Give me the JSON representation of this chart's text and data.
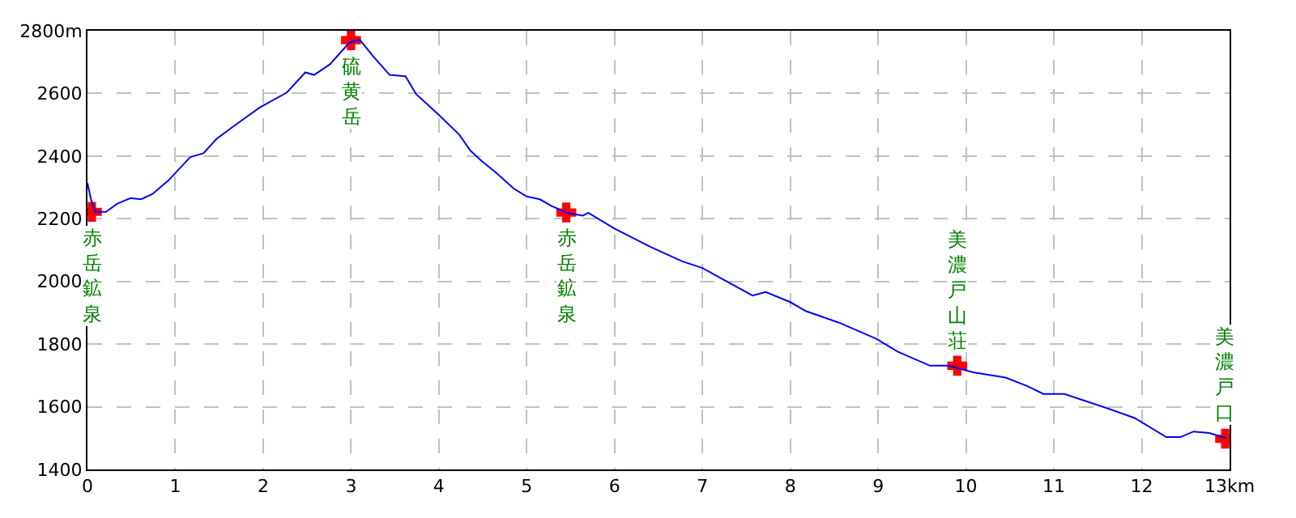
{
  "chart_data": {
    "type": "line",
    "series": [
      {
        "color": "#0000ff",
        "x": [
          0,
          0.04,
          0.09,
          0.21,
          0.34,
          0.49,
          0.61,
          0.74,
          0.92,
          1.17,
          1.32,
          1.47,
          1.72,
          1.96,
          2.27,
          2.48,
          2.58,
          2.76,
          2.98,
          3.1,
          3.25,
          3.44,
          3.62,
          3.74,
          3.99,
          4.23,
          4.36,
          4.48,
          4.66,
          4.85,
          5.0,
          5.15,
          5.28,
          5.46,
          5.64,
          5.7,
          6.01,
          6.41,
          6.77,
          7.0,
          7.2,
          7.57,
          7.72,
          8.0,
          8.18,
          8.55,
          8.98,
          9.22,
          9.59,
          9.8,
          10.08,
          10.45,
          10.69,
          10.88,
          11.12,
          11.61,
          11.92,
          12.28,
          12.44,
          12.59,
          12.77,
          12.96
        ],
        "values": [
          2314,
          2262,
          2222,
          2222,
          2248,
          2266,
          2262,
          2279,
          2322,
          2397,
          2409,
          2455,
          2507,
          2555,
          2603,
          2667,
          2659,
          2693,
          2762,
          2771,
          2719,
          2659,
          2655,
          2598,
          2534,
          2469,
          2417,
          2386,
          2345,
          2297,
          2271,
          2262,
          2241,
          2219,
          2210,
          2219,
          2167,
          2110,
          2064,
          2043,
          2012,
          1955,
          1966,
          1934,
          1905,
          1869,
          1817,
          1776,
          1731,
          1731,
          1710,
          1693,
          1667,
          1641,
          1641,
          1595,
          1564,
          1503,
          1503,
          1521,
          1516,
          1500
        ]
      },
      {
        "type": "scatter",
        "marker": "cross",
        "color": "#ff0000",
        "x": [
          0.05,
          3.0,
          5.45,
          9.9,
          12.95
        ],
        "values": [
          2222,
          2770,
          2220,
          1731,
          1498
        ]
      }
    ],
    "annotations": [
      {
        "text": "赤岳鉱泉",
        "x": 0.05,
        "y": 2222
      },
      {
        "text": "硫黄岳",
        "x": 3.0,
        "y": 2770
      },
      {
        "text": "赤岳鉱泉",
        "x": 5.45,
        "y": 2220
      },
      {
        "text": "美濃戸山荘",
        "x": 9.9,
        "y": 1731
      },
      {
        "text": "美濃戸口",
        "x": 12.95,
        "y": 1498
      }
    ],
    "xlim": [
      0,
      13
    ],
    "xticks": [
      0,
      1,
      2,
      3,
      4,
      5,
      6,
      7,
      8,
      9,
      10,
      11,
      12,
      {
        "value": 13,
        "label": "13km"
      }
    ],
    "ylim": [
      1400,
      2800
    ],
    "yticks": [
      1400,
      1600,
      1800,
      2000,
      2200,
      2400,
      2600,
      {
        "value": 2800,
        "label": "2800m"
      }
    ],
    "grid": true
  }
}
